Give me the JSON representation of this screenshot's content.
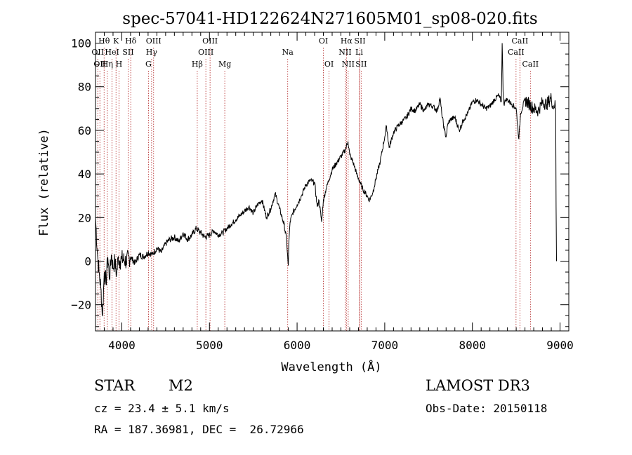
{
  "chart_data": {
    "type": "line",
    "title": "spec-57041-HD122624N271605M01_sp08-020.fits",
    "xlabel": "Wavelength (Å)",
    "ylabel": "Flux (relative)",
    "xlim": [
      3700,
      9100
    ],
    "ylim": [
      -32,
      105
    ],
    "x_ticks": [
      4000,
      5000,
      6000,
      7000,
      8000,
      9000
    ],
    "y_ticks": [
      -20,
      0,
      20,
      40,
      60,
      80,
      100
    ],
    "grid": false,
    "series": [
      {
        "x": [
          3700,
          3720,
          3740,
          3760,
          3780,
          3800,
          3820,
          3840,
          3860,
          3880,
          3900,
          3920,
          3940,
          3960,
          3980,
          4000,
          4050,
          4100,
          4150,
          4200,
          4250,
          4300,
          4350,
          4400,
          4450,
          4500,
          4550,
          4600,
          4650,
          4700,
          4750,
          4800,
          4850,
          4900,
          4950,
          5000,
          5050,
          5100,
          5150,
          5200,
          5250,
          5300,
          5350,
          5400,
          5450,
          5500,
          5550,
          5600,
          5650,
          5700,
          5750,
          5800,
          5850,
          5880,
          5895,
          5900,
          5905,
          5920,
          5950,
          6000,
          6050,
          6100,
          6150,
          6200,
          6230,
          6250,
          6280,
          6300,
          6330,
          6360,
          6400,
          6450,
          6500,
          6550,
          6580,
          6600,
          6620,
          6650,
          6680,
          6700,
          6720,
          6750,
          6800,
          6820,
          6850,
          6880,
          6900,
          6950,
          7000,
          7020,
          7050,
          7100,
          7150,
          7200,
          7250,
          7300,
          7350,
          7400,
          7450,
          7500,
          7550,
          7600,
          7630,
          7650,
          7680,
          7700,
          7720,
          7750,
          7800,
          7850,
          7900,
          7950,
          8000,
          8050,
          8100,
          8150,
          8200,
          8250,
          8300,
          8330,
          8340,
          8350,
          8360,
          8380,
          8400,
          8450,
          8500,
          8530,
          8550,
          8600,
          8650,
          8700,
          8750,
          8800,
          8850,
          8900,
          8920,
          8940,
          8950,
          8955,
          8960
        ],
        "y": [
          20,
          5,
          -5,
          -12,
          -25,
          -5,
          -10,
          2,
          -8,
          3,
          -3,
          0,
          -6,
          2,
          0,
          1,
          0,
          2,
          -1,
          3,
          2,
          4,
          3,
          6,
          4,
          8,
          10,
          11,
          9,
          13,
          10,
          12,
          15,
          13,
          11,
          12,
          14,
          12,
          13,
          15,
          17,
          19,
          21,
          23,
          25,
          22,
          26,
          28,
          20,
          24,
          31,
          24,
          17,
          10,
          0,
          -2,
          8,
          18,
          22,
          26,
          30,
          35,
          37,
          36,
          25,
          28,
          18,
          28,
          33,
          37,
          42,
          45,
          48,
          51,
          55,
          49,
          47,
          44,
          40,
          38,
          36,
          33,
          30,
          28,
          30,
          34,
          38,
          46,
          57,
          62,
          52,
          59,
          62,
          64,
          66,
          70,
          69,
          72,
          69,
          72,
          71,
          69,
          75,
          68,
          60,
          57,
          63,
          65,
          66,
          60,
          65,
          68,
          73,
          74,
          72,
          70,
          71,
          74,
          76,
          73,
          100,
          78,
          72,
          74,
          74,
          72,
          70,
          56,
          68,
          74,
          72,
          70,
          69,
          73,
          72,
          75,
          71,
          72,
          70,
          25,
          0
        ],
        "color": "#000000"
      }
    ],
    "lines": [
      {
        "x": 3726,
        "label": "OII",
        "row": 2
      },
      {
        "x": 3750,
        "label": "OII",
        "row": 3
      },
      {
        "x": 3798,
        "label": "Hθ",
        "row": 1
      },
      {
        "x": 3835,
        "label": "Hη",
        "row": 3
      },
      {
        "x": 3889,
        "label": "HeI",
        "row": 2
      },
      {
        "x": 3934,
        "label": "K",
        "row": 1
      },
      {
        "x": 3968,
        "label": "H",
        "row": 3
      },
      {
        "x": 4072,
        "label": "SII",
        "row": 2
      },
      {
        "x": 4102,
        "label": "Hδ",
        "row": 1
      },
      {
        "x": 4304,
        "label": "G",
        "row": 3
      },
      {
        "x": 4340,
        "label": "Hγ",
        "row": 2
      },
      {
        "x": 4363,
        "label": "OIII",
        "row": 1
      },
      {
        "x": 4861,
        "label": "Hβ",
        "row": 3
      },
      {
        "x": 4959,
        "label": "OIII",
        "row": 2
      },
      {
        "x": 5007,
        "label": "OIII",
        "row": 1
      },
      {
        "x": 5175,
        "label": "Mg",
        "row": 3
      },
      {
        "x": 5893,
        "label": "Na",
        "row": 2
      },
      {
        "x": 6300,
        "label": "OI",
        "row": 1
      },
      {
        "x": 6364,
        "label": "OI",
        "row": 3
      },
      {
        "x": 6548,
        "label": "NII",
        "row": 2
      },
      {
        "x": 6563,
        "label": "Hα",
        "row": 1
      },
      {
        "x": 6583,
        "label": "NII",
        "row": 3
      },
      {
        "x": 6708,
        "label": "Li",
        "row": 2
      },
      {
        "x": 6716,
        "label": "SII",
        "row": 1
      },
      {
        "x": 6731,
        "label": "SII",
        "row": 3
      },
      {
        "x": 8498,
        "label": "CaII",
        "row": 2
      },
      {
        "x": 8542,
        "label": "CaII",
        "row": 1
      },
      {
        "x": 8662,
        "label": "CaII",
        "row": 3
      }
    ]
  },
  "info": {
    "object_class": "STAR",
    "subclass": "M2",
    "survey": "LAMOST DR3",
    "cz": "cz = 23.4 ± 5.1 km/s",
    "obs_date": "Obs-Date: 20150118",
    "coords": "RA = 187.36981, DEC =  26.72966"
  }
}
